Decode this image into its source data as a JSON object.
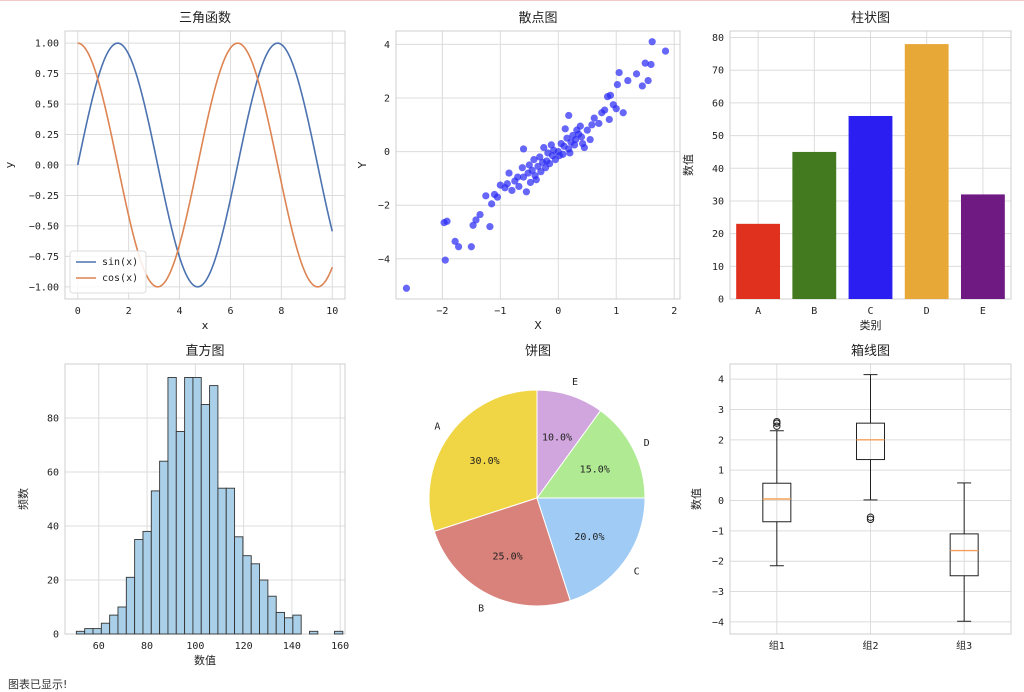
{
  "chart_data": [
    {
      "type": "line",
      "title": "三角函数",
      "xlabel": "x",
      "ylabel": "y",
      "xlim": [
        -0.5,
        10.5
      ],
      "ylim": [
        -1.1,
        1.1
      ],
      "xticks": [
        0,
        2,
        4,
        6,
        8,
        10
      ],
      "yticks": [
        -1.0,
        -0.75,
        -0.5,
        -0.25,
        0.0,
        0.25,
        0.5,
        0.75,
        1.0
      ],
      "ytick_labels": [
        "−1.00",
        "−0.75",
        "−0.50",
        "−0.25",
        "0.00",
        "0.25",
        "0.50",
        "0.75",
        "1.00"
      ],
      "series": [
        {
          "name": "sin(x)",
          "function": "sin",
          "x_range": [
            0,
            10
          ],
          "color": "#4c72b0"
        },
        {
          "name": "cos(x)",
          "function": "cos",
          "x_range": [
            0,
            10
          ],
          "color": "#dd8452"
        }
      ],
      "legend": "lower-left",
      "grid": true
    },
    {
      "type": "scatter",
      "title": "散点图",
      "xlabel": "X",
      "ylabel": "Y",
      "xlim": [
        -2.8,
        2.1
      ],
      "ylim": [
        -5.5,
        4.5
      ],
      "xticks": [
        -2,
        -1,
        0,
        1,
        2
      ],
      "yticks": [
        -4,
        -2,
        0,
        2,
        4
      ],
      "xtick_labels": [
        "−2",
        "−1",
        "0",
        "1",
        "2"
      ],
      "ytick_labels": [
        "−4",
        "−2",
        "0",
        "2",
        "4"
      ],
      "color": "#2b2bf5",
      "points": [
        [
          -2.62,
          -5.1
        ],
        [
          -1.97,
          -2.65
        ],
        [
          -1.92,
          -2.6
        ],
        [
          -1.95,
          -4.05
        ],
        [
          -1.78,
          -3.35
        ],
        [
          -1.72,
          -3.55
        ],
        [
          -1.5,
          -3.55
        ],
        [
          -1.47,
          -2.75
        ],
        [
          -1.42,
          -2.55
        ],
        [
          -1.35,
          -2.35
        ],
        [
          -1.25,
          -1.65
        ],
        [
          -1.18,
          -2.8
        ],
        [
          -1.15,
          -1.95
        ],
        [
          -1.1,
          -1.6
        ],
        [
          -1.05,
          -1.7
        ],
        [
          -1.0,
          -1.25
        ],
        [
          -0.92,
          -1.35
        ],
        [
          -0.88,
          -1.2
        ],
        [
          -0.85,
          -0.8
        ],
        [
          -0.8,
          -1.45
        ],
        [
          -0.75,
          -1.1
        ],
        [
          -0.7,
          -0.95
        ],
        [
          -0.68,
          -1.3
        ],
        [
          -0.62,
          -0.6
        ],
        [
          -0.6,
          -0.95
        ],
        [
          -0.55,
          -1.5
        ],
        [
          -0.52,
          -0.8
        ],
        [
          -0.5,
          -0.5
        ],
        [
          -0.48,
          -1.15
        ],
        [
          -0.45,
          -0.7
        ],
        [
          -0.42,
          -0.3
        ],
        [
          -0.4,
          -0.9
        ],
        [
          -0.38,
          -1.05
        ],
        [
          -0.35,
          -0.55
        ],
        [
          -0.32,
          -0.2
        ],
        [
          -0.3,
          -0.75
        ],
        [
          -0.27,
          -0.4
        ],
        [
          -0.25,
          0.15
        ],
        [
          -0.22,
          -0.6
        ],
        [
          -0.2,
          -0.35
        ],
        [
          -0.18,
          -0.05
        ],
        [
          -0.15,
          -0.45
        ],
        [
          -0.12,
          0.25
        ],
        [
          -0.1,
          -0.15
        ],
        [
          -0.08,
          0.05
        ],
        [
          -0.05,
          -0.3
        ],
        [
          0.0,
          0.0
        ],
        [
          0.02,
          -0.15
        ],
        [
          0.05,
          0.3
        ],
        [
          0.08,
          -0.1
        ],
        [
          0.1,
          0.2
        ],
        [
          0.12,
          0.85
        ],
        [
          0.15,
          0.5
        ],
        [
          0.18,
          0.1
        ],
        [
          0.2,
          -0.05
        ],
        [
          0.22,
          0.35
        ],
        [
          0.25,
          0.6
        ],
        [
          0.28,
          0.25
        ],
        [
          0.3,
          0.45
        ],
        [
          0.32,
          0.8
        ],
        [
          0.35,
          0.65
        ],
        [
          0.38,
          0.95
        ],
        [
          0.4,
          0.55
        ],
        [
          0.42,
          0.3
        ],
        [
          0.45,
          0.15
        ],
        [
          0.5,
          0.8
        ],
        [
          0.55,
          0.45
        ],
        [
          0.58,
          1.0
        ],
        [
          0.62,
          1.25
        ],
        [
          0.7,
          1.05
        ],
        [
          0.75,
          1.45
        ],
        [
          0.8,
          1.55
        ],
        [
          0.85,
          2.05
        ],
        [
          0.88,
          1.2
        ],
        [
          0.9,
          2.1
        ],
        [
          0.95,
          1.75
        ],
        [
          1.0,
          1.6
        ],
        [
          1.02,
          2.5
        ],
        [
          1.05,
          2.95
        ],
        [
          1.12,
          1.45
        ],
        [
          1.2,
          2.65
        ],
        [
          1.35,
          2.9
        ],
        [
          1.45,
          2.45
        ],
        [
          1.5,
          3.3
        ],
        [
          1.55,
          2.65
        ],
        [
          1.6,
          3.25
        ],
        [
          1.62,
          4.1
        ],
        [
          1.85,
          3.75
        ],
        [
          0.18,
          1.35
        ],
        [
          -0.6,
          0.1
        ]
      ],
      "grid": true
    },
    {
      "type": "bar",
      "title": "柱状图",
      "xlabel": "类别",
      "ylabel": "数值",
      "categories": [
        "A",
        "B",
        "C",
        "D",
        "E"
      ],
      "values": [
        23,
        45,
        56,
        78,
        32
      ],
      "colors": [
        "#e0301e",
        "#437a1f",
        "#2a1ff0",
        "#e8a838",
        "#6f1a82"
      ],
      "ylim": [
        0,
        82
      ],
      "yticks": [
        0,
        10,
        20,
        30,
        40,
        50,
        60,
        70,
        80
      ],
      "grid": true
    },
    {
      "type": "histogram",
      "title": "直方图",
      "xlabel": "数值",
      "ylabel": "频数",
      "bin_start": 50.7,
      "bin_width": 3.45,
      "counts": [
        1,
        2,
        2,
        4,
        7,
        10,
        21,
        35,
        38,
        53,
        64,
        95,
        75,
        95,
        95,
        85,
        92,
        54,
        54,
        36,
        29,
        26,
        20,
        14,
        8,
        6,
        7,
        0,
        1,
        0,
        0,
        1
      ],
      "xlim": [
        46,
        162
      ],
      "ylim": [
        0,
        100
      ],
      "xticks": [
        60,
        80,
        100,
        120,
        140,
        160
      ],
      "yticks": [
        0,
        20,
        40,
        60,
        80
      ],
      "color": "#a9d0e8",
      "grid": true
    },
    {
      "type": "pie",
      "title": "饼图",
      "labels": [
        "A",
        "B",
        "C",
        "D",
        "E"
      ],
      "values": [
        30,
        25,
        20,
        15,
        10
      ],
      "percent_labels": [
        "30.0%",
        "25.0%",
        "20.0%",
        "15.0%",
        "10.0%"
      ],
      "colors": [
        "#f0d544",
        "#d9827b",
        "#9fcbf5",
        "#b0eb94",
        "#d1a6de"
      ],
      "start_angle_deg": 90,
      "direction": "counterclockwise"
    },
    {
      "type": "box",
      "title": "箱线图",
      "ylabel": "数值",
      "categories": [
        "组1",
        "组2",
        "组3"
      ],
      "boxes": [
        {
          "whisker_low": -2.15,
          "q1": -0.7,
          "median": 0.05,
          "q3": 0.57,
          "whisker_high": 2.3,
          "outliers": [
            2.45,
            2.55,
            2.6
          ]
        },
        {
          "whisker_low": 0.02,
          "q1": 1.35,
          "median": 2.0,
          "q3": 2.55,
          "whisker_high": 4.15,
          "outliers": [
            -0.55,
            -0.62
          ]
        },
        {
          "whisker_low": -3.98,
          "q1": -2.48,
          "median": -1.65,
          "q3": -1.1,
          "whisker_high": 0.58,
          "outliers": []
        }
      ],
      "ylim": [
        -4.4,
        4.5
      ],
      "yticks": [
        -4,
        -3,
        -2,
        -1,
        0,
        1,
        2,
        3,
        4
      ],
      "ytick_labels": [
        "−4",
        "−3",
        "−2",
        "−1",
        "0",
        "1",
        "2",
        "3",
        "4"
      ],
      "grid": true
    }
  ],
  "footer_text": "图表已显示!"
}
